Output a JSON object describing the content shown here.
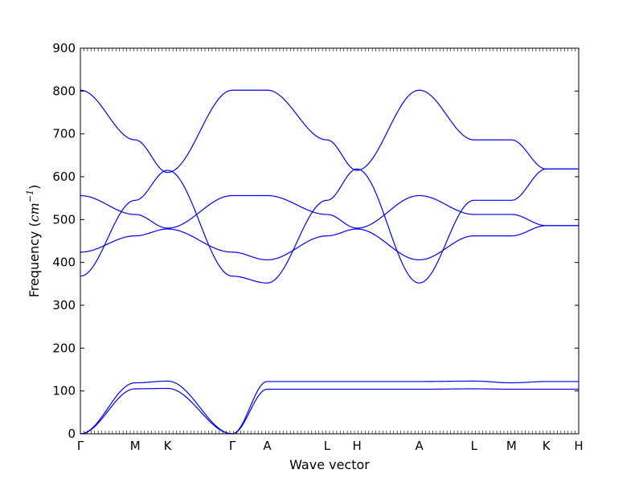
{
  "chart_data": {
    "type": "line",
    "title": "",
    "xlabel": "Wave vector",
    "ylabel": {
      "prefix": "Frequency (",
      "unit": "cm",
      "superscript": "−1",
      "suffix": ")"
    },
    "ylim": [
      0,
      900
    ],
    "yticks": [
      0,
      100,
      200,
      300,
      400,
      500,
      600,
      700,
      800,
      900
    ],
    "grid": false,
    "legend": "none",
    "line_color": "#0000ff",
    "x_points": [
      "Γ",
      "M",
      "K",
      "Γ",
      "A",
      "L",
      "H",
      "A",
      "L",
      "M",
      "K",
      "H"
    ],
    "x_positions": [
      0,
      1.1,
      1.75,
      3.05,
      3.75,
      4.95,
      5.55,
      6.8,
      7.9,
      8.65,
      9.35,
      10.0
    ],
    "x_end": 10.0,
    "series": [
      {
        "x": [
          0,
          1.1,
          1.75,
          3.05,
          3.75,
          4.95,
          5.55,
          6.8,
          7.9,
          8.65,
          9.35,
          10.0
        ],
        "y": [
          0,
          105,
          106,
          0,
          104,
          104,
          104,
          104,
          105,
          104,
          104,
          104
        ]
      },
      {
        "x": [
          0,
          1.1,
          1.75,
          3.05,
          3.75,
          4.95,
          5.55,
          6.8,
          7.9,
          8.65,
          9.35,
          10.0
        ],
        "y": [
          0,
          119,
          123,
          0,
          122,
          122,
          122,
          122,
          123,
          119,
          122,
          122
        ]
      },
      {
        "x": [
          0,
          1.1,
          1.75,
          3.05,
          3.75,
          4.95,
          5.55,
          6.8,
          7.9,
          8.65,
          9.35,
          10.0
        ],
        "y": [
          368,
          545,
          615,
          368,
          352,
          545,
          618,
          352,
          545,
          545,
          618,
          618
        ]
      },
      {
        "x": [
          0,
          1.1,
          1.75,
          3.05,
          3.75,
          4.95,
          5.55,
          6.8,
          7.9,
          8.65,
          9.35,
          10.0
        ],
        "y": [
          424,
          462,
          478,
          424,
          406,
          462,
          478,
          406,
          462,
          462,
          486,
          486
        ]
      },
      {
        "x": [
          0,
          1.1,
          1.75,
          3.05,
          3.75,
          4.95,
          5.55,
          6.8,
          7.9,
          8.65,
          9.35,
          10.0
        ],
        "y": [
          556,
          512,
          480,
          556,
          556,
          512,
          480,
          556,
          512,
          512,
          486,
          486
        ]
      },
      {
        "x": [
          0,
          1.1,
          1.75,
          3.05,
          3.75,
          4.95,
          5.55,
          6.8,
          7.9,
          8.65,
          9.35,
          10.0
        ],
        "y": [
          802,
          686,
          610,
          802,
          802,
          686,
          615,
          802,
          686,
          686,
          618,
          618
        ]
      }
    ]
  }
}
